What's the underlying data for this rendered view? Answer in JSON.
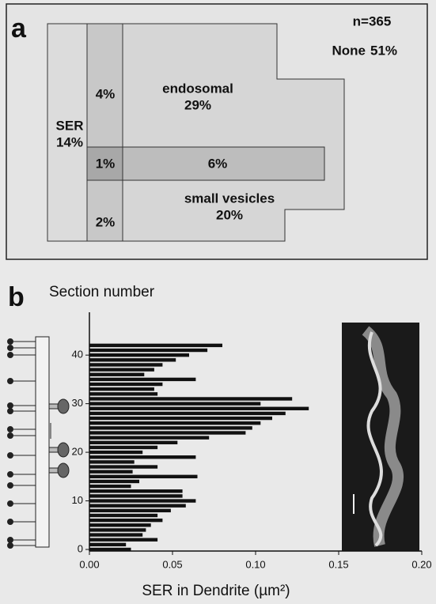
{
  "chart_data": [
    {
      "type": "region-diagram",
      "label": "a",
      "title": "n=365",
      "categories": [
        "SER",
        "endosomal",
        "small vesicles",
        null,
        null,
        null,
        null,
        "None"
      ],
      "values": [
        14,
        29,
        20,
        4,
        1,
        6,
        2,
        51
      ],
      "value_labels": [
        "14%",
        "29%",
        "20%",
        "4%",
        "1%",
        "6%",
        "2%",
        "51%"
      ]
    },
    {
      "type": "bar",
      "label": "b",
      "orientation": "horizontal",
      "color": "#111111",
      "ylabel": "Section number",
      "xlabel": "SER in Dendrite (µm²)",
      "categories": [
        0,
        1,
        2,
        3,
        4,
        5,
        6,
        7,
        8,
        9,
        10,
        11,
        12,
        13,
        14,
        15,
        16,
        17,
        18,
        19,
        20,
        21,
        22,
        23,
        24,
        25,
        26,
        27,
        28,
        29,
        30,
        31,
        32,
        33,
        34,
        35,
        36,
        37,
        38,
        39,
        40,
        41,
        42
      ],
      "values": [
        0.025,
        0.022,
        0.041,
        0.032,
        0.034,
        0.037,
        0.044,
        0.041,
        0.049,
        0.058,
        0.064,
        0.056,
        0.056,
        0.025,
        0.03,
        0.065,
        0.026,
        0.041,
        0.027,
        0.064,
        0.032,
        0.041,
        0.053,
        0.072,
        0.094,
        0.098,
        0.103,
        0.11,
        0.118,
        0.132,
        0.103,
        0.122,
        0.041,
        0.039,
        0.044,
        0.064,
        0.033,
        0.039,
        0.044,
        0.052,
        0.06,
        0.071,
        0.08
      ],
      "xlim": [
        0,
        0.2
      ],
      "ylim": [
        0,
        48
      ],
      "xticks": [
        {
          "value": 0,
          "label": "0.00"
        },
        {
          "value": 0.05,
          "label": "0.05"
        },
        {
          "value": 0.1,
          "label": "0.10"
        },
        {
          "value": 0.15,
          "label": "0.15"
        },
        {
          "value": 0.2,
          "label": "0.20"
        }
      ],
      "yticks": [
        0,
        10,
        20,
        30,
        40
      ]
    }
  ]
}
